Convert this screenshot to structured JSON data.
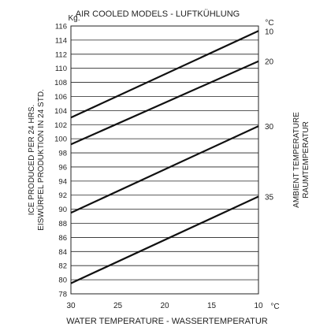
{
  "chart_data": {
    "type": "line",
    "title": "AIR COOLED MODELS - LUFTKÜHLUNG",
    "xlabel": "WATER TEMPERATURE - WASSERTEMPERATUR",
    "ylabel_line1": "ICE PRODUCED PER 24 HRS.",
    "ylabel_line2": "EISWÜRFEL PRODUKTION IN 24 STD.",
    "y_unit": "Kg.",
    "x_unit": "°C",
    "right_unit": "°C",
    "right_label_line1": "AMBIENT TEMPERATURE",
    "right_label_line2": "RAUMTEMPERATUR",
    "x_ticks": [
      30,
      25,
      20,
      15,
      10
    ],
    "y_ticks": [
      116,
      114,
      112,
      110,
      108,
      106,
      104,
      102,
      100,
      98,
      96,
      94,
      92,
      90,
      88,
      86,
      84,
      82,
      80,
      78
    ],
    "xlim": [
      30,
      10
    ],
    "ylim": [
      78,
      116
    ],
    "grid": "horizontal",
    "series": [
      {
        "name": "10",
        "x": [
          30,
          10
        ],
        "y": [
          103,
          115.3
        ]
      },
      {
        "name": "20",
        "x": [
          30,
          10
        ],
        "y": [
          99.2,
          111
        ]
      },
      {
        "name": "30",
        "x": [
          30,
          10
        ],
        "y": [
          89.5,
          101.8
        ]
      },
      {
        "name": "35",
        "x": [
          30,
          10
        ],
        "y": [
          79.5,
          91.8
        ]
      }
    ]
  }
}
